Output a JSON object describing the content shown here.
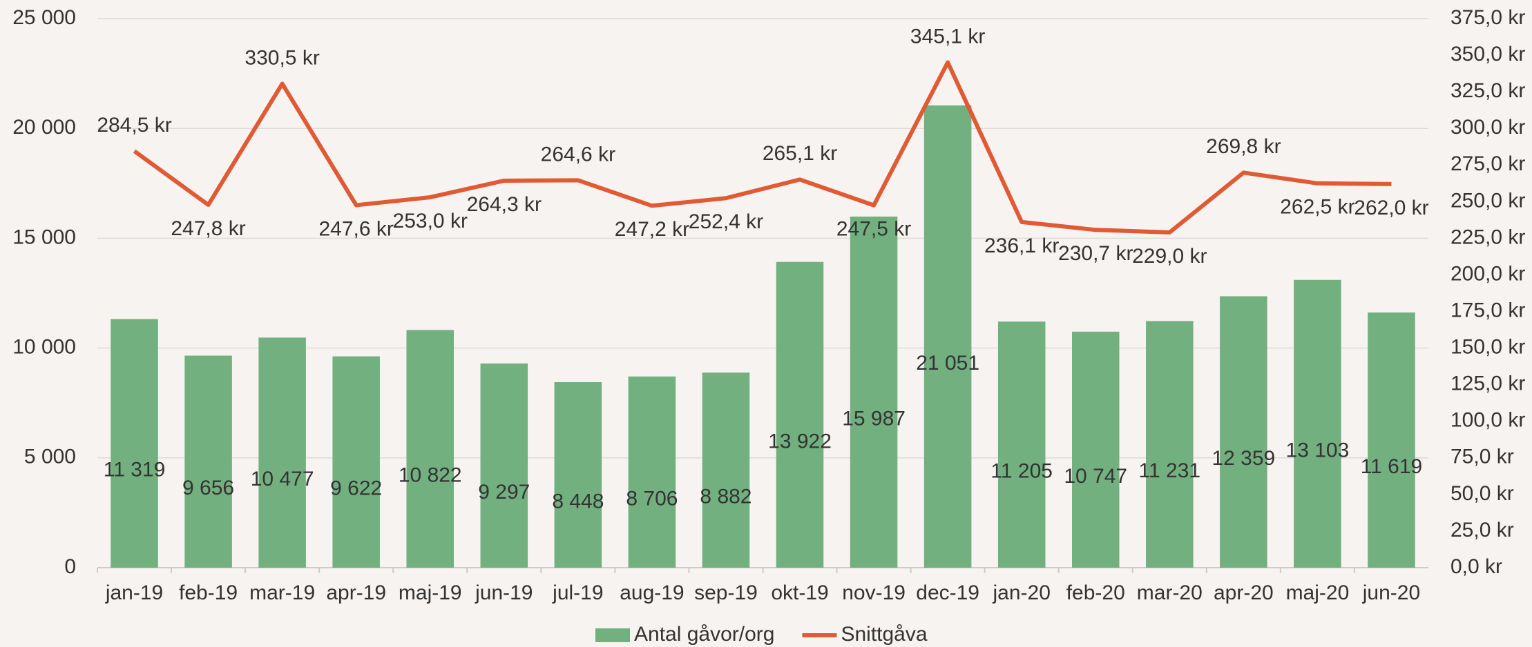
{
  "chart_data": {
    "type": "bar",
    "categories": [
      "jan-19",
      "feb-19",
      "mar-19",
      "apr-19",
      "maj-19",
      "jun-19",
      "jul-19",
      "aug-19",
      "sep-19",
      "okt-19",
      "nov-19",
      "dec-19",
      "jan-20",
      "feb-20",
      "mar-20",
      "apr-20",
      "maj-20",
      "jun-20"
    ],
    "series": [
      {
        "name": "Antal gåvor/org",
        "type": "bar",
        "color": "#72b07f",
        "values": [
          11319,
          9656,
          10477,
          9622,
          10822,
          9297,
          8448,
          8706,
          8882,
          13922,
          15987,
          21051,
          11205,
          10747,
          11231,
          12359,
          13103,
          11619
        ],
        "value_labels": [
          "11 319",
          "9 656",
          "10 477",
          "9 622",
          "10 822",
          "9 297",
          "8 448",
          "8 706",
          "8 882",
          "13 922",
          "15 987",
          "21 051",
          "11 205",
          "10 747",
          "11 231",
          "12 359",
          "13 103",
          "11 619"
        ]
      },
      {
        "name": "Snittgåva",
        "type": "line",
        "axis": "y2",
        "color": "#e05a33",
        "values": [
          284.5,
          247.8,
          330.5,
          247.6,
          253.0,
          264.3,
          264.6,
          247.2,
          252.4,
          265.1,
          247.5,
          345.1,
          236.1,
          230.7,
          229.0,
          269.8,
          262.5,
          262.0
        ],
        "value_labels": [
          "284,5 kr",
          "247,8 kr",
          "330,5 kr",
          "247,6 kr",
          "253,0 kr",
          "264,3 kr",
          "264,6 kr",
          "247,2 kr",
          "252,4 kr",
          "265,1 kr",
          "247,5 kr",
          "345,1 kr",
          "236,1 kr",
          "230,7 kr",
          "229,0 kr",
          "269,8 kr",
          "262,5 kr",
          "262,0 kr"
        ]
      }
    ],
    "ylim": [
      0,
      25000
    ],
    "yticks": [
      {
        "value": 0,
        "label": "0"
      },
      {
        "value": 5000,
        "label": "5 000"
      },
      {
        "value": 10000,
        "label": "10 000"
      },
      {
        "value": 15000,
        "label": "15 000"
      },
      {
        "value": 20000,
        "label": "20 000"
      },
      {
        "value": 25000,
        "label": "25 000"
      }
    ],
    "y2lim": [
      0,
      375
    ],
    "y2ticks": [
      {
        "value": 0,
        "label": "0,0 kr"
      },
      {
        "value": 25,
        "label": "25,0 kr"
      },
      {
        "value": 50,
        "label": "50,0 kr"
      },
      {
        "value": 75,
        "label": "75,0 kr"
      },
      {
        "value": 100,
        "label": "100,0 kr"
      },
      {
        "value": 125,
        "label": "125,0 kr"
      },
      {
        "value": 150,
        "label": "150,0 kr"
      },
      {
        "value": 175,
        "label": "175,0 kr"
      },
      {
        "value": 200,
        "label": "200,0 kr"
      },
      {
        "value": 225,
        "label": "225,0 kr"
      },
      {
        "value": 250,
        "label": "250,0 kr"
      },
      {
        "value": 275,
        "label": "275,0 kr"
      },
      {
        "value": 300,
        "label": "300,0 kr"
      },
      {
        "value": 325,
        "label": "325,0 kr"
      },
      {
        "value": 350,
        "label": "350,0 kr"
      },
      {
        "value": 375,
        "label": "375,0 kr"
      }
    ],
    "grid": true,
    "legend": "bottom"
  }
}
